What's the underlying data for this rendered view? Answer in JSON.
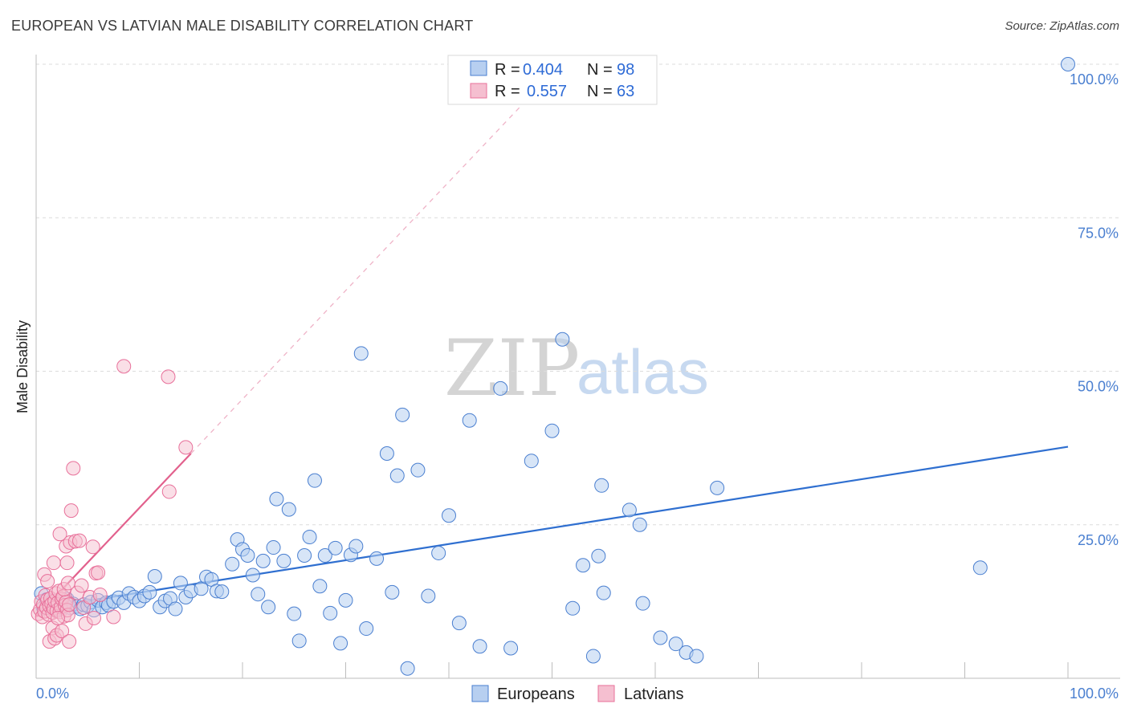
{
  "header": {
    "title": "EUROPEAN VS LATVIAN MALE DISABILITY CORRELATION CHART",
    "source": "Source: ZipAtlas.com"
  },
  "legend": {
    "r_label": "R =",
    "n_label": "N =",
    "rows": [
      {
        "r": "0.404",
        "n": "98"
      },
      {
        "r": "0.557",
        "n": "63"
      }
    ]
  },
  "watermark": {
    "zip": "ZIP",
    "atlas": "atlas"
  },
  "colors": {
    "europeans": "#4a7fd0",
    "europeans_fill": "#b7cff0",
    "latvians": "#e8709a",
    "latvians_fill": "#f5bfd0"
  },
  "chart_data": {
    "type": "scatter",
    "ylabel": "Male Disability",
    "xlabel": "",
    "xlim": [
      0,
      100
    ],
    "ylim": [
      0,
      100
    ],
    "x_tick_labels": [
      "0.0%",
      "100.0%"
    ],
    "y_ticks": [
      {
        "value": 100,
        "label": "100.0%"
      },
      {
        "value": 75,
        "label": "75.0%"
      },
      {
        "value": 50,
        "label": "50.0%"
      },
      {
        "value": 25,
        "label": "25.0%"
      }
    ],
    "grid": true,
    "legend_position": "top-center",
    "series": [
      {
        "name": "Europeans",
        "trend": {
          "x": [
            0,
            100
          ],
          "y": [
            11.3,
            37.7
          ]
        },
        "points": [
          [
            0.5,
            13.8
          ],
          [
            0.7,
            11.5
          ],
          [
            1.0,
            12.8
          ],
          [
            1.3,
            11.8
          ],
          [
            1.6,
            12.6
          ],
          [
            2.0,
            11.2
          ],
          [
            2.3,
            12.2
          ],
          [
            2.6,
            11.6
          ],
          [
            3.0,
            12.9
          ],
          [
            3.3,
            11.5
          ],
          [
            3.6,
            12.1
          ],
          [
            4.0,
            11.7
          ],
          [
            4.3,
            11.3
          ],
          [
            4.6,
            12.0
          ],
          [
            5.0,
            11.8
          ],
          [
            5.3,
            12.4
          ],
          [
            5.6,
            11.1
          ],
          [
            6.0,
            12.7
          ],
          [
            6.4,
            11.6
          ],
          [
            6.8,
            12.3
          ],
          [
            7.0,
            11.9
          ],
          [
            7.5,
            12.5
          ],
          [
            8.0,
            13.1
          ],
          [
            8.5,
            12.3
          ],
          [
            9.0,
            13.8
          ],
          [
            9.5,
            13.2
          ],
          [
            10.0,
            12.6
          ],
          [
            10.5,
            13.4
          ],
          [
            11.0,
            14.0
          ],
          [
            11.5,
            16.6
          ],
          [
            12.0,
            11.6
          ],
          [
            12.5,
            12.6
          ],
          [
            13.0,
            13.0
          ],
          [
            13.5,
            11.3
          ],
          [
            14.0,
            15.5
          ],
          [
            14.5,
            13.2
          ],
          [
            15.0,
            14.2
          ],
          [
            16.0,
            14.6
          ],
          [
            16.5,
            16.5
          ],
          [
            17.0,
            16.1
          ],
          [
            17.5,
            14.2
          ],
          [
            18.0,
            14.1
          ],
          [
            19.0,
            18.6
          ],
          [
            19.5,
            22.6
          ],
          [
            20.0,
            21.0
          ],
          [
            20.5,
            20.0
          ],
          [
            21.0,
            16.8
          ],
          [
            21.5,
            13.7
          ],
          [
            22.0,
            19.1
          ],
          [
            22.5,
            11.6
          ],
          [
            23.0,
            21.3
          ],
          [
            23.3,
            29.2
          ],
          [
            24.0,
            19.1
          ],
          [
            24.5,
            27.5
          ],
          [
            25.0,
            10.5
          ],
          [
            25.5,
            6.1
          ],
          [
            26.0,
            20.0
          ],
          [
            26.5,
            23.0
          ],
          [
            27.0,
            32.2
          ],
          [
            27.5,
            15.0
          ],
          [
            28.0,
            20.0
          ],
          [
            28.5,
            10.6
          ],
          [
            29.0,
            21.2
          ],
          [
            29.5,
            5.7
          ],
          [
            30.0,
            12.7
          ],
          [
            30.5,
            20.1
          ],
          [
            31.0,
            21.5
          ],
          [
            31.5,
            52.9
          ],
          [
            32.0,
            8.1
          ],
          [
            33.0,
            19.5
          ],
          [
            34.0,
            36.6
          ],
          [
            34.5,
            14.0
          ],
          [
            35.0,
            33.0
          ],
          [
            35.5,
            42.9
          ],
          [
            36.0,
            1.6
          ],
          [
            37.0,
            33.9
          ],
          [
            38.0,
            13.4
          ],
          [
            39.0,
            20.4
          ],
          [
            40.0,
            26.5
          ],
          [
            41.0,
            9.0
          ],
          [
            42.0,
            42.0
          ],
          [
            43.0,
            5.2
          ],
          [
            45.0,
            47.2
          ],
          [
            46.0,
            4.9
          ],
          [
            48.0,
            35.4
          ],
          [
            50.0,
            40.3
          ],
          [
            51.0,
            55.2
          ],
          [
            52.0,
            11.4
          ],
          [
            53.0,
            18.4
          ],
          [
            54.0,
            3.6
          ],
          [
            54.5,
            19.9
          ],
          [
            54.8,
            31.4
          ],
          [
            55.0,
            13.9
          ],
          [
            57.5,
            27.4
          ],
          [
            58.5,
            25.0
          ],
          [
            58.8,
            12.2
          ],
          [
            60.5,
            6.6
          ],
          [
            62.0,
            5.6
          ],
          [
            63.0,
            4.2
          ],
          [
            64.0,
            3.6
          ],
          [
            66.0,
            31.0
          ],
          [
            91.5,
            18.0
          ],
          [
            100.0,
            100.0
          ]
        ]
      },
      {
        "name": "Latvians",
        "trend": {
          "x": [
            0,
            15
          ],
          "y": [
            10.0,
            36.6
          ]
        },
        "trend_extended": {
          "x": [
            15,
            48
          ],
          "y": [
            36.6,
            95.0
          ]
        },
        "points": [
          [
            0.2,
            10.5
          ],
          [
            0.4,
            11.2
          ],
          [
            0.5,
            12.5
          ],
          [
            0.6,
            10.0
          ],
          [
            0.7,
            12.0
          ],
          [
            0.8,
            10.9
          ],
          [
            0.9,
            13.5
          ],
          [
            1.0,
            11.5
          ],
          [
            1.1,
            12.8
          ],
          [
            1.2,
            10.4
          ],
          [
            1.3,
            11.8
          ],
          [
            1.4,
            13.0
          ],
          [
            1.5,
            12.1
          ],
          [
            1.6,
            10.7
          ],
          [
            1.7,
            11.4
          ],
          [
            1.8,
            12.6
          ],
          [
            1.9,
            13.8
          ],
          [
            2.0,
            11.0
          ],
          [
            2.1,
            12.3
          ],
          [
            2.2,
            14.2
          ],
          [
            2.3,
            10.8
          ],
          [
            2.4,
            11.6
          ],
          [
            2.5,
            12.9
          ],
          [
            2.6,
            13.3
          ],
          [
            2.7,
            10.1
          ],
          [
            2.8,
            11.9
          ],
          [
            2.9,
            12.4
          ],
          [
            3.0,
            11.1
          ],
          [
            3.1,
            10.3
          ],
          [
            3.2,
            12.0
          ],
          [
            0.8,
            16.9
          ],
          [
            1.1,
            15.8
          ],
          [
            1.3,
            6.0
          ],
          [
            1.6,
            8.2
          ],
          [
            1.7,
            18.8
          ],
          [
            1.8,
            6.5
          ],
          [
            2.0,
            7.0
          ],
          [
            2.1,
            9.8
          ],
          [
            2.3,
            23.5
          ],
          [
            2.5,
            7.7
          ],
          [
            2.7,
            14.5
          ],
          [
            2.9,
            21.5
          ],
          [
            3.0,
            18.8
          ],
          [
            3.1,
            15.5
          ],
          [
            3.2,
            6.0
          ],
          [
            3.3,
            22.1
          ],
          [
            3.4,
            27.3
          ],
          [
            3.6,
            34.2
          ],
          [
            3.8,
            22.3
          ],
          [
            4.0,
            13.9
          ],
          [
            4.2,
            22.4
          ],
          [
            4.4,
            15.1
          ],
          [
            4.6,
            11.5
          ],
          [
            4.8,
            8.9
          ],
          [
            5.2,
            13.2
          ],
          [
            5.5,
            21.4
          ],
          [
            5.6,
            9.8
          ],
          [
            5.8,
            17.1
          ],
          [
            6.0,
            17.2
          ],
          [
            6.2,
            13.6
          ],
          [
            7.5,
            10.0
          ],
          [
            8.5,
            50.8
          ],
          [
            12.8,
            49.1
          ],
          [
            12.9,
            30.4
          ],
          [
            14.5,
            37.6
          ]
        ]
      }
    ]
  },
  "bottom_legend": {
    "items": [
      {
        "label": "Europeans"
      },
      {
        "label": "Latvians"
      }
    ]
  }
}
